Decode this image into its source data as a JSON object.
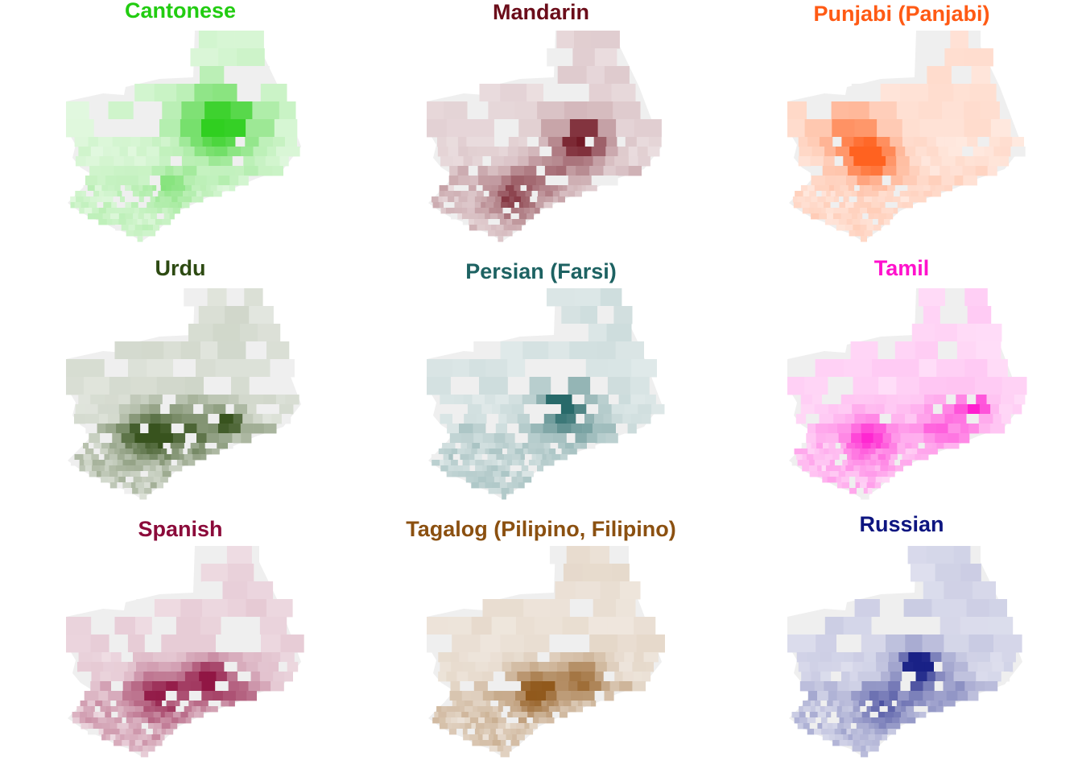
{
  "panels": [
    {
      "title": "Cantonese",
      "color": "#22cc11"
    },
    {
      "title": "Mandarin",
      "color": "#6b0d1a"
    },
    {
      "title": "Punjabi (Panjabi)",
      "color": "#ff5a14"
    },
    {
      "title": "Urdu",
      "color": "#2d4a12"
    },
    {
      "title": "Persian (Farsi)",
      "color": "#1d6262"
    },
    {
      "title": "Tamil",
      "color": "#ff11cc"
    },
    {
      "title": "Spanish",
      "color": "#8b0a3a"
    },
    {
      "title": "Tagalog (Pilipino, Filipino)",
      "color": "#8b5010"
    },
    {
      "title": "Russian",
      "color": "#0d1580"
    }
  ],
  "no_data_color": "#efefef"
}
